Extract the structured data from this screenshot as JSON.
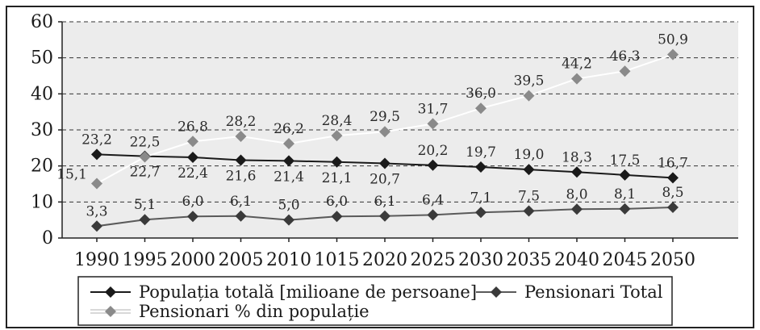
{
  "chart_data": {
    "type": "line",
    "categories": [
      "1990",
      "1995",
      "2000",
      "2005",
      "2010",
      "1015",
      "2020",
      "2025",
      "2030",
      "2035",
      "2040",
      "2045",
      "2050"
    ],
    "ylim": [
      0,
      60
    ],
    "yticks": [
      0,
      10,
      20,
      30,
      40,
      50,
      60
    ],
    "grid": "horizontal-dashed",
    "legend_position": "bottom",
    "series": [
      {
        "name": "Populația totală [milioane de persoane]",
        "color": "#1a1a1a",
        "line_color": "#1a1a1a",
        "values": [
          23.2,
          22.7,
          22.4,
          21.6,
          21.4,
          21.1,
          20.7,
          20.2,
          19.7,
          19.0,
          18.3,
          17.5,
          16.7
        ],
        "labels": [
          "23,2",
          "22,7",
          "22,4",
          "21,6",
          "21,4",
          "21,1",
          "20,7",
          "20,2",
          "19,7",
          "19,0",
          "18,3",
          "17,5",
          "16,7"
        ],
        "label_positions": [
          "above",
          "below",
          "below",
          "below",
          "below",
          "below",
          "below",
          "above",
          "above",
          "above",
          "above",
          "above",
          "above"
        ]
      },
      {
        "name": "Pensionari Total",
        "color": "#3a3a3a",
        "line_color": "#5a5a5a",
        "values": [
          3.3,
          5.1,
          6.0,
          6.1,
          5.0,
          6.0,
          6.1,
          6.4,
          7.1,
          7.5,
          8.0,
          8.1,
          8.5
        ],
        "labels": [
          "3,3",
          "5,1",
          "6,0",
          "6,1",
          "5,0",
          "6,0",
          "6,1",
          "6,4",
          "7,1",
          "7,5",
          "8,0",
          "8,1",
          "8,5"
        ],
        "label_positions": [
          "above",
          "above",
          "above",
          "above",
          "above",
          "above",
          "above",
          "above",
          "above",
          "above",
          "above",
          "above",
          "above"
        ]
      },
      {
        "name": "Pensionari % din populație",
        "color": "#8a8a8a",
        "line_color": "#ffffff",
        "values": [
          15.1,
          22.5,
          26.8,
          28.2,
          26.2,
          28.4,
          29.5,
          31.7,
          36.0,
          39.5,
          44.2,
          46.3,
          50.9
        ],
        "labels": [
          "15,1",
          "22,5",
          "26,8",
          "28,2",
          "26,2",
          "28,4",
          "29,5",
          "31,7",
          "36,0",
          "39,5",
          "44,2",
          "46,3",
          "50,9"
        ],
        "label_positions": [
          "left",
          "above",
          "above",
          "above",
          "above",
          "above",
          "above",
          "above",
          "above",
          "above",
          "above",
          "above",
          "above"
        ]
      }
    ]
  }
}
